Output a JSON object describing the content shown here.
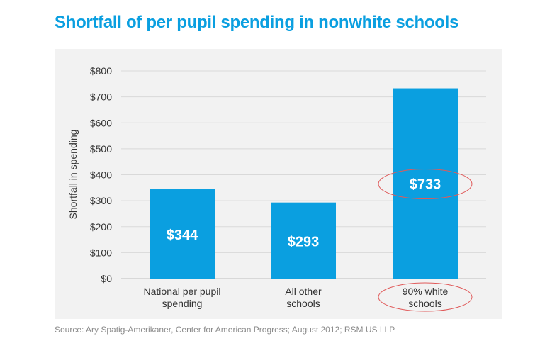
{
  "title": "Shortfall of per pupil spending in nonwhite schools",
  "source": "Source: Ary Spatig-Amerikaner, Center for American Progress;  August 2012; RSM US LLP",
  "colors": {
    "title": "#0a9fe0",
    "bar": "#0a9fe0",
    "panel": "#f2f2f2",
    "highlight_ring": "#e05a5a"
  },
  "chart_data": {
    "type": "bar",
    "title": "Shortfall of per pupil spending in nonwhite schools",
    "xlabel": "",
    "ylabel": "Shortfall in spending",
    "categories": [
      [
        "National per pupil",
        "spending"
      ],
      [
        "All other",
        "schools"
      ],
      [
        "90% white",
        "schools"
      ]
    ],
    "values": [
      344,
      293,
      733
    ],
    "value_labels": [
      "$344",
      "$293",
      "$733"
    ],
    "ylim": [
      0,
      800
    ],
    "yticks": [
      0,
      100,
      200,
      300,
      400,
      500,
      600,
      700,
      800
    ],
    "ytick_labels": [
      "$0",
      "$100",
      "$200",
      "$300",
      "$400",
      "$500",
      "$600",
      "$700",
      "$800"
    ],
    "grid": true,
    "highlighted_category": "90% white schools"
  }
}
